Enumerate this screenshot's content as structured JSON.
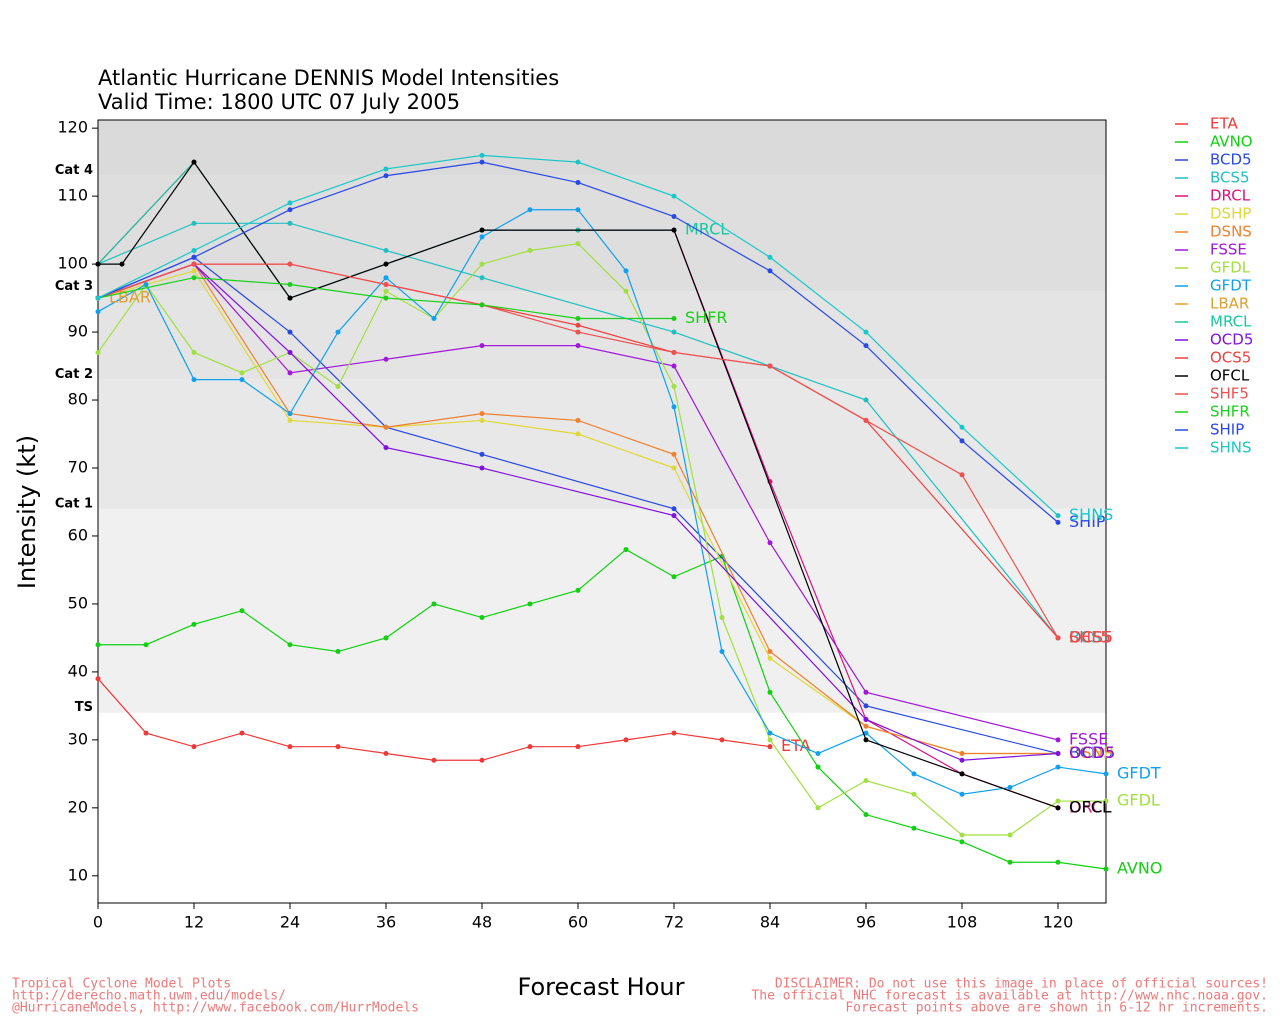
{
  "chart_data": {
    "type": "line",
    "title": "Atlantic Hurricane DENNIS Model Intensities",
    "subtitle": "Valid Time: 1800 UTC 07 July 2005",
    "x_label": "Forecast Hour",
    "y_label": "Intensity (kt)",
    "xlim": [
      0,
      126
    ],
    "ylim": [
      6,
      121.2
    ],
    "xticks": [
      0,
      12,
      24,
      36,
      48,
      60,
      72,
      84,
      96,
      108,
      120
    ],
    "yticks": [
      10,
      20,
      30,
      40,
      50,
      60,
      70,
      80,
      90,
      100,
      110,
      120
    ],
    "category_bands": [
      {
        "label": "TS",
        "value": 34,
        "color": "#f0f0f0"
      },
      {
        "label": "Cat 1",
        "value": 64,
        "color": "#e8e8e8"
      },
      {
        "label": "Cat 2",
        "value": 83,
        "color": "#e4e4e4"
      },
      {
        "label": "Cat 3",
        "value": 96,
        "color": "#dedede"
      },
      {
        "label": "Cat 4",
        "value": 113,
        "color": "#dadada"
      }
    ],
    "series": [
      {
        "name": "ETA",
        "color": "#f03838",
        "x": [
          0,
          6,
          12,
          18,
          24,
          30,
          36,
          42,
          48,
          54,
          60,
          66,
          72,
          78,
          84
        ],
        "values": [
          39,
          31,
          29,
          31,
          29,
          29,
          28,
          27,
          27,
          29,
          29,
          30,
          31,
          30,
          29
        ]
      },
      {
        "name": "AVNO",
        "color": "#10d010",
        "x": [
          0,
          6,
          12,
          18,
          24,
          30,
          36,
          42,
          48,
          54,
          60,
          66,
          72,
          78,
          84,
          90,
          96,
          102,
          108,
          114,
          120,
          126
        ],
        "values": [
          44,
          44,
          47,
          49,
          44,
          43,
          45,
          50,
          48,
          50,
          52,
          58,
          54,
          57,
          37,
          26,
          19,
          17,
          15,
          12,
          12,
          11
        ]
      },
      {
        "name": "BCD5",
        "color": "#2848e0",
        "x": [
          0,
          12,
          24,
          36,
          48,
          72,
          96,
          120
        ],
        "values": [
          95,
          101,
          90,
          76,
          72,
          64,
          35,
          28
        ]
      },
      {
        "name": "BCS5",
        "color": "#20c0c0",
        "x": [
          0,
          12,
          24,
          36,
          48,
          72,
          84,
          96,
          120
        ],
        "values": [
          100,
          106,
          106,
          102,
          98,
          90,
          85,
          80,
          45
        ]
      },
      {
        "name": "DRCL",
        "color": "#e01080",
        "x": [
          0,
          12,
          24,
          36,
          48,
          60,
          72,
          84,
          96,
          108,
          120
        ],
        "values": [
          100,
          115,
          95,
          100,
          105,
          105,
          105,
          68,
          33,
          25,
          20
        ]
      },
      {
        "name": "DSHP",
        "color": "#e0d838",
        "x": [
          0,
          12,
          24,
          36,
          48,
          60,
          72,
          84,
          96,
          108,
          120
        ],
        "values": [
          95,
          99,
          77,
          76,
          77,
          75,
          70,
          42,
          32,
          28,
          28
        ]
      },
      {
        "name": "DSNS",
        "color": "#f08030",
        "x": [
          0,
          12,
          24,
          36,
          48,
          60,
          72,
          84,
          96,
          108,
          120
        ],
        "values": [
          95,
          100,
          78,
          76,
          78,
          77,
          72,
          43,
          32,
          28,
          28
        ]
      },
      {
        "name": "FSSE",
        "color": "#a018d8",
        "x": [
          0,
          12,
          24,
          36,
          48,
          60,
          72,
          84,
          96,
          120
        ],
        "values": [
          95,
          100,
          84,
          86,
          88,
          88,
          85,
          59,
          37,
          30
        ]
      },
      {
        "name": "GFDL",
        "color": "#a0e040",
        "x": [
          0,
          6,
          12,
          18,
          24,
          30,
          36,
          42,
          48,
          54,
          60,
          66,
          72,
          78,
          84,
          90,
          96,
          102,
          108,
          114,
          120,
          126
        ],
        "values": [
          87,
          97,
          87,
          84,
          87,
          82,
          96,
          92,
          100,
          102,
          103,
          96,
          82,
          48,
          30,
          20,
          24,
          22,
          16,
          16,
          21,
          21
        ]
      },
      {
        "name": "GFDT",
        "color": "#10a0f0",
        "x": [
          0,
          6,
          12,
          18,
          24,
          30,
          36,
          42,
          48,
          54,
          60,
          66,
          72,
          78,
          84,
          90,
          96,
          102,
          108,
          114,
          120,
          126
        ],
        "values": [
          93,
          97,
          83,
          83,
          78,
          90,
          98,
          92,
          104,
          108,
          108,
          99,
          79,
          43,
          31,
          28,
          31,
          25,
          22,
          23,
          26,
          25
        ]
      },
      {
        "name": "LBAR",
        "color": "#e0a030",
        "x": [
          0
        ],
        "values": [
          95
        ]
      },
      {
        "name": "MRCL",
        "color": "#18c8a0",
        "x": [
          0,
          12,
          24,
          36,
          48,
          60,
          72
        ],
        "values": [
          100,
          115,
          95,
          100,
          105,
          105,
          105
        ]
      },
      {
        "name": "OCD5",
        "color": "#8010e0",
        "x": [
          0,
          12,
          24,
          36,
          48,
          72,
          96,
          108,
          120
        ],
        "values": [
          95,
          100,
          87,
          73,
          70,
          63,
          33,
          27,
          28
        ]
      },
      {
        "name": "OCS5",
        "color": "#f04040",
        "x": [
          0,
          12,
          24,
          36,
          48,
          60,
          72,
          84,
          96,
          120
        ],
        "values": [
          95,
          100,
          100,
          97,
          94,
          91,
          87,
          85,
          77,
          45
        ]
      },
      {
        "name": "OFCL",
        "color": "#000000",
        "x": [
          0,
          3,
          12,
          24,
          36,
          48,
          72,
          96,
          108,
          120
        ],
        "values": [
          100,
          100,
          115,
          95,
          100,
          105,
          105,
          30,
          25,
          20
        ]
      },
      {
        "name": "SHF5",
        "color": "#f05050",
        "x": [
          0,
          12,
          24,
          36,
          48,
          60,
          72,
          84,
          96,
          108,
          120
        ],
        "values": [
          95,
          100,
          100,
          97,
          94,
          90,
          87,
          85,
          77,
          69,
          45
        ]
      },
      {
        "name": "SHFR",
        "color": "#18d018",
        "x": [
          0,
          12,
          24,
          36,
          48,
          60,
          72
        ],
        "values": [
          95,
          98,
          97,
          95,
          94,
          92,
          92
        ]
      },
      {
        "name": "SHIP",
        "color": "#2848e8",
        "x": [
          0,
          12,
          24,
          36,
          48,
          60,
          72,
          84,
          96,
          108,
          120
        ],
        "values": [
          95,
          101,
          108,
          113,
          115,
          112,
          107,
          99,
          88,
          74,
          62
        ]
      },
      {
        "name": "SHNS",
        "color": "#18c8c8",
        "x": [
          0,
          12,
          24,
          36,
          48,
          60,
          72,
          84,
          96,
          108,
          120
        ],
        "values": [
          95,
          102,
          109,
          114,
          116,
          115,
          110,
          101,
          90,
          76,
          63
        ]
      }
    ],
    "footer_left": [
      "Tropical Cyclone Model Plots",
      "http://derecho.math.uwm.edu/models/",
      "@HurricaneModels, http://www.facebook.com/HurrModels"
    ],
    "footer_right": [
      "DISCLAIMER: Do not use this image in place of official sources!",
      "The official NHC forecast is available at http://www.nhc.noaa.gov.",
      "Forecast points above are shown in 6-12 hr increments."
    ]
  }
}
